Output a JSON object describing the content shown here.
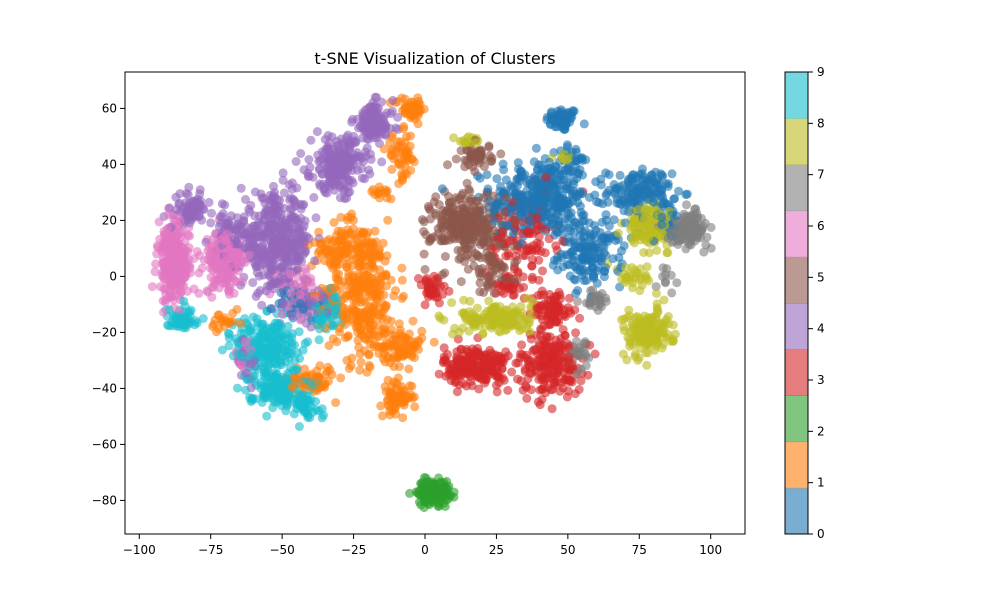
{
  "chart_data": {
    "type": "scatter",
    "title": "t-SNE Visualization of Clusters",
    "xlabel": "",
    "ylabel": "",
    "xlim": [
      -105,
      112
    ],
    "ylim": [
      -92,
      73
    ],
    "xticks": [
      -100,
      -75,
      -50,
      -25,
      0,
      25,
      50,
      75,
      100
    ],
    "yticks": [
      -80,
      -60,
      -40,
      -20,
      0,
      20,
      40,
      60
    ],
    "grid": false,
    "colorbar": {
      "ticks": [
        0,
        1,
        2,
        3,
        4,
        5,
        6,
        7,
        8,
        9
      ],
      "range": [
        0,
        9
      ],
      "colors": [
        "#1f77b4",
        "#ff7f0e",
        "#2ca02c",
        "#d62728",
        "#9467bd",
        "#8c564b",
        "#e377c2",
        "#7f7f7f",
        "#bcbd22",
        "#17becf"
      ],
      "alpha": 0.6
    },
    "series": [
      {
        "label": 0,
        "color": "#1f77b4",
        "clusters": [
          [
            48,
            56,
            4,
            3,
            60
          ],
          [
            40,
            28,
            12,
            10,
            350
          ],
          [
            58,
            8,
            8,
            8,
            150
          ],
          [
            75,
            30,
            8,
            6,
            150
          ],
          [
            85,
            20,
            4,
            5,
            40
          ],
          [
            52,
            42,
            3,
            3,
            25
          ],
          [
            -45,
            -10,
            6,
            5,
            40
          ]
        ]
      },
      {
        "label": 1,
        "color": "#ff7f0e",
        "clusters": [
          [
            -5,
            60,
            4,
            3,
            50
          ],
          [
            -22,
            -5,
            9,
            18,
            350
          ],
          [
            -8,
            -25,
            5,
            5,
            80
          ],
          [
            -10,
            -43,
            4,
            4,
            70
          ],
          [
            -8,
            43,
            4,
            6,
            50
          ],
          [
            -40,
            -37,
            6,
            4,
            60
          ],
          [
            -30,
            10,
            7,
            6,
            80
          ],
          [
            -70,
            -17,
            4,
            3,
            20
          ],
          [
            -15,
            30,
            3,
            2,
            15
          ]
        ]
      },
      {
        "label": 2,
        "color": "#2ca02c",
        "clusters": [
          [
            3,
            -77,
            4,
            3,
            160
          ]
        ]
      },
      {
        "label": 3,
        "color": "#d62728",
        "clusters": [
          [
            18,
            -32,
            8,
            5,
            220
          ],
          [
            44,
            -31,
            8,
            8,
            200
          ],
          [
            45,
            -12,
            5,
            5,
            80
          ],
          [
            35,
            15,
            8,
            10,
            100
          ],
          [
            2,
            -5,
            4,
            4,
            40
          ],
          [
            30,
            -3,
            6,
            4,
            40
          ]
        ]
      },
      {
        "label": 4,
        "color": "#9467bd",
        "clusters": [
          [
            -30,
            40,
            7,
            7,
            220
          ],
          [
            -18,
            55,
            5,
            5,
            120
          ],
          [
            -52,
            12,
            9,
            12,
            400
          ],
          [
            -82,
            24,
            4,
            4,
            70
          ],
          [
            -67,
            15,
            5,
            5,
            60
          ],
          [
            -63,
            -30,
            3,
            4,
            20
          ],
          [
            -40,
            -10,
            5,
            5,
            30
          ]
        ]
      },
      {
        "label": 5,
        "color": "#8c564b",
        "clusters": [
          [
            15,
            18,
            9,
            9,
            300
          ],
          [
            18,
            43,
            4,
            3,
            50
          ],
          [
            25,
            0,
            5,
            5,
            40
          ]
        ]
      },
      {
        "label": 6,
        "color": "#e377c2",
        "clusters": [
          [
            -88,
            5,
            4,
            10,
            260
          ],
          [
            -70,
            5,
            5,
            8,
            160
          ],
          [
            -63,
            -28,
            3,
            4,
            30
          ],
          [
            -45,
            -5,
            5,
            6,
            40
          ]
        ]
      },
      {
        "label": 7,
        "color": "#7f7f7f",
        "clusters": [
          [
            92,
            17,
            5,
            4,
            120
          ],
          [
            55,
            -27,
            3,
            4,
            25
          ],
          [
            60,
            -8,
            4,
            3,
            25
          ],
          [
            85,
            0,
            3,
            3,
            10
          ]
        ]
      },
      {
        "label": 8,
        "color": "#bcbd22",
        "clusters": [
          [
            78,
            18,
            5,
            5,
            150
          ],
          [
            78,
            -20,
            6,
            6,
            160
          ],
          [
            25,
            -15,
            9,
            4,
            150
          ],
          [
            73,
            0,
            4,
            3,
            30
          ],
          [
            50,
            43,
            3,
            2,
            15
          ],
          [
            15,
            48,
            3,
            2,
            15
          ]
        ]
      },
      {
        "label": 9,
        "color": "#17becf",
        "clusters": [
          [
            -55,
            -25,
            8,
            8,
            220
          ],
          [
            -52,
            -40,
            7,
            4,
            150
          ],
          [
            -85,
            -15,
            4,
            3,
            50
          ],
          [
            -35,
            -12,
            4,
            5,
            60
          ],
          [
            -42,
            -47,
            4,
            3,
            40
          ]
        ]
      }
    ]
  }
}
